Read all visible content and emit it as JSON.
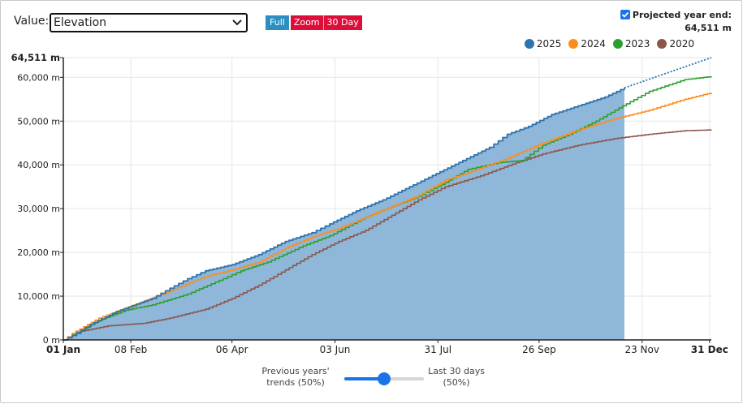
{
  "controls": {
    "value_label": "Value:",
    "value_selected": "Elevation",
    "mode_full": "Full",
    "mode_zoom": "Zoom",
    "mode_30": "30 Day",
    "projected_label": "Projected year end:",
    "projected_value": "64,511 m",
    "projected_checked": true
  },
  "slider": {
    "left_caption_1": "Previous years'",
    "left_caption_2": "trends (50%)",
    "right_caption_1": "Last 30 days",
    "right_caption_2": "(50%)",
    "value": 0.5
  },
  "colors": {
    "s2025": "#2e73ad",
    "s2025_fill": "#8fb7d9",
    "s2024": "#ff8c1a",
    "s2023": "#2ca02c",
    "s2020": "#8c564b",
    "accent_blue": "#2b8fc2",
    "accent_red": "#dd0f3a"
  },
  "chart_data": {
    "type": "area",
    "ylim": [
      0,
      64511
    ],
    "xlim": [
      0,
      365
    ],
    "grid": true,
    "legend_position": "top-right",
    "y_ticks": [
      {
        "value": 0,
        "label": "0 m"
      },
      {
        "value": 10000,
        "label": "10,000 m"
      },
      {
        "value": 20000,
        "label": "20,000 m"
      },
      {
        "value": 30000,
        "label": "30,000 m"
      },
      {
        "value": 40000,
        "label": "40,000 m"
      },
      {
        "value": 50000,
        "label": "50,000 m"
      },
      {
        "value": 60000,
        "label": "60,000 m"
      },
      {
        "value": 64511,
        "label": "64,511 m",
        "bold": true
      }
    ],
    "x_ticks": [
      {
        "day": 0,
        "label": "01 Jan",
        "bold": true
      },
      {
        "day": 38,
        "label": "08 Feb"
      },
      {
        "day": 95,
        "label": "06 Apr"
      },
      {
        "day": 153,
        "label": "03 Jun"
      },
      {
        "day": 211,
        "label": "31 Jul"
      },
      {
        "day": 268,
        "label": "26 Sep"
      },
      {
        "day": 326,
        "label": "23 Nov"
      },
      {
        "day": 364,
        "label": "31 Dec",
        "bold": true
      }
    ],
    "series": [
      {
        "name": "2025",
        "key": "s2025",
        "area": true,
        "points": [
          [
            0,
            0
          ],
          [
            5,
            1000
          ],
          [
            15,
            3500
          ],
          [
            30,
            6500
          ],
          [
            50,
            9500
          ],
          [
            60,
            11800
          ],
          [
            70,
            14000
          ],
          [
            80,
            15800
          ],
          [
            95,
            17200
          ],
          [
            110,
            19500
          ],
          [
            125,
            22500
          ],
          [
            140,
            24500
          ],
          [
            150,
            26500
          ],
          [
            165,
            29500
          ],
          [
            180,
            32000
          ],
          [
            195,
            35000
          ],
          [
            210,
            38000
          ],
          [
            225,
            41000
          ],
          [
            240,
            44000
          ],
          [
            250,
            47000
          ],
          [
            262,
            48800
          ],
          [
            275,
            51500
          ],
          [
            290,
            53500
          ],
          [
            305,
            55500
          ],
          [
            316,
            57600
          ]
        ]
      },
      {
        "name": "2024",
        "key": "s2024",
        "points": [
          [
            0,
            0
          ],
          [
            5,
            1500
          ],
          [
            20,
            5000
          ],
          [
            40,
            8000
          ],
          [
            60,
            11200
          ],
          [
            80,
            14500
          ],
          [
            95,
            16000
          ],
          [
            110,
            17800
          ],
          [
            125,
            21000
          ],
          [
            140,
            23500
          ],
          [
            155,
            25500
          ],
          [
            170,
            28000
          ],
          [
            185,
            30500
          ],
          [
            200,
            33000
          ],
          [
            215,
            36500
          ],
          [
            230,
            38500
          ],
          [
            250,
            41500
          ],
          [
            270,
            45000
          ],
          [
            290,
            48000
          ],
          [
            310,
            50500
          ],
          [
            330,
            52500
          ],
          [
            350,
            55000
          ],
          [
            365,
            56500
          ]
        ]
      },
      {
        "name": "2023",
        "key": "s2023",
        "points": [
          [
            0,
            0
          ],
          [
            5,
            1200
          ],
          [
            20,
            4500
          ],
          [
            35,
            6800
          ],
          [
            50,
            8000
          ],
          [
            70,
            10500
          ],
          [
            90,
            14000
          ],
          [
            100,
            15800
          ],
          [
            115,
            17800
          ],
          [
            135,
            21500
          ],
          [
            150,
            23800
          ],
          [
            170,
            28000
          ],
          [
            185,
            30500
          ],
          [
            200,
            32800
          ],
          [
            215,
            36000
          ],
          [
            228,
            39000
          ],
          [
            245,
            40500
          ],
          [
            258,
            41000
          ],
          [
            270,
            44500
          ],
          [
            285,
            47000
          ],
          [
            300,
            50000
          ],
          [
            315,
            53500
          ],
          [
            330,
            56800
          ],
          [
            350,
            59500
          ],
          [
            365,
            60200
          ]
        ]
      },
      {
        "name": "2020",
        "key": "s2020",
        "points": [
          [
            0,
            0
          ],
          [
            10,
            2000
          ],
          [
            25,
            3200
          ],
          [
            45,
            3800
          ],
          [
            60,
            5000
          ],
          [
            80,
            7000
          ],
          [
            95,
            9500
          ],
          [
            110,
            12500
          ],
          [
            125,
            16000
          ],
          [
            140,
            19500
          ],
          [
            155,
            22500
          ],
          [
            170,
            25000
          ],
          [
            185,
            28500
          ],
          [
            200,
            32000
          ],
          [
            215,
            35000
          ],
          [
            235,
            37500
          ],
          [
            255,
            40500
          ],
          [
            270,
            42500
          ],
          [
            290,
            44500
          ],
          [
            310,
            46000
          ],
          [
            330,
            47000
          ],
          [
            350,
            47800
          ],
          [
            365,
            48000
          ]
        ]
      }
    ],
    "projection": {
      "from": [
        316,
        57600
      ],
      "to": [
        365,
        64511
      ]
    }
  }
}
